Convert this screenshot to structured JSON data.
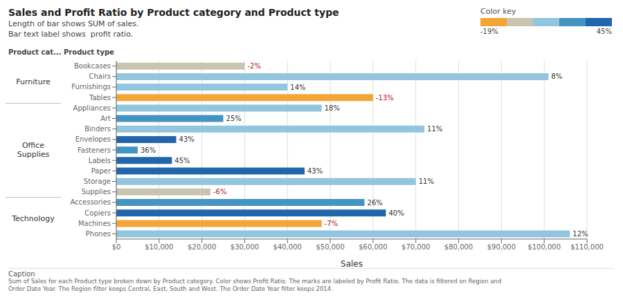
{
  "chart_data": {
    "type": "bar",
    "orientation": "horizontal",
    "title": "Sales and Profit Ratio by Product category and Product type",
    "subtitle": [
      "Length of bar shows SUM of sales.",
      "Bar text label shows  profit ratio."
    ],
    "xlabel": "Sales",
    "group_header": "Product cat...",
    "category_header": "Product type",
    "categories": [
      "Bookcases",
      "Chairs",
      "Furnishings",
      "Tables",
      "Appliances",
      "Art",
      "Binders",
      "Envelopes",
      "Fasteners",
      "Labels",
      "Paper",
      "Storage",
      "Supplies",
      "Accessories",
      "Copiers",
      "Machines",
      "Phones"
    ],
    "groups": [
      "Furniture",
      "Furniture",
      "Furniture",
      "Furniture",
      "Office\nSupplies",
      "Office\nSupplies",
      "Office\nSupplies",
      "Office\nSupplies",
      "Office\nSupplies",
      "Office\nSupplies",
      "Office\nSupplies",
      "Office\nSupplies",
      "Office\nSupplies",
      "Technology",
      "Technology",
      "Technology",
      "Technology"
    ],
    "values": [
      30000,
      101000,
      40000,
      60000,
      48000,
      25000,
      72000,
      14000,
      5000,
      13000,
      44000,
      70000,
      22000,
      58000,
      63000,
      48000,
      106000
    ],
    "colors": [
      "#c9c4b0",
      "#92c5de",
      "#92c5de",
      "#f4a535",
      "#92c5de",
      "#4393c3",
      "#92c5de",
      "#2166ac",
      "#4393c3",
      "#2166ac",
      "#2166ac",
      "#92c5de",
      "#c9c4b0",
      "#4393c3",
      "#2166ac",
      "#f4a535",
      "#92c5de"
    ],
    "profit_ratio": [
      -2,
      8,
      14,
      -13,
      18,
      25,
      11,
      43,
      36,
      45,
      43,
      11,
      -6,
      26,
      40,
      -7,
      12
    ],
    "profit_ratio_labels": [
      "-2%",
      "8%",
      "14%",
      "-13%",
      "18%",
      "25%",
      "11%",
      "43%",
      "36%",
      "45%",
      "43%",
      "11%",
      "-6%",
      "26%",
      "40%",
      "-7%",
      "12%"
    ],
    "xlim": [
      0,
      110000
    ],
    "xticks": [
      {
        "value": 0,
        "label": "$0"
      },
      {
        "value": 10000,
        "label": "$10,000"
      },
      {
        "value": 20000,
        "label": "$20,000"
      },
      {
        "value": 30000,
        "label": "$30,000"
      },
      {
        "value": 40000,
        "label": "$40,000"
      },
      {
        "value": 50000,
        "label": "$50,000"
      },
      {
        "value": 60000,
        "label": "$60,000"
      },
      {
        "value": 70000,
        "label": "$70,000"
      },
      {
        "value": 80000,
        "label": "$80,000"
      },
      {
        "value": 90000,
        "label": "$90,000"
      },
      {
        "value": 100000,
        "label": "$100,000"
      },
      {
        "value": 110000,
        "label": "$110,000"
      }
    ],
    "grid": true,
    "color_key": {
      "title": "Color key",
      "colors": [
        "#f4a535",
        "#c9c4b0",
        "#92c5de",
        "#4393c3",
        "#2166ac"
      ],
      "min_label": "-19%",
      "max_label": "45%"
    },
    "annotations": [
      "Caption",
      "Sum of Sales for each Product type broken down by Product category.  Color shows Profit Ratio.  The marks are labeled by Profit Ratio. The data is filtered on Region and\nOrder Date Year. The Region filter keeps Central, East, South and West. The Order Date Year filter keeps 2014."
    ]
  }
}
